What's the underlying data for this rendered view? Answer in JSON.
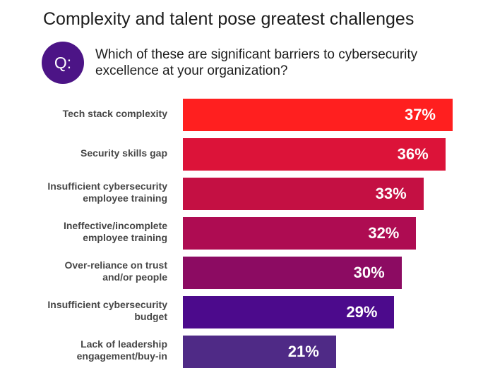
{
  "question_badge": "Q:",
  "colors": {
    "badge": "#4c1486",
    "title_text": "#1c1c1c",
    "label_text": "#474747",
    "value_text": "#ffffff"
  },
  "chart_data": {
    "type": "bar",
    "title": "Complexity and talent pose greatest challenges",
    "subtitle": "Which of these are significant barriers to cybersecurity excellence at your organization?",
    "categories": [
      "Tech stack complexity",
      "Security skills gap",
      "Insufficient cybersecurity\nemployee training",
      "Ineffective/incomplete\nemployee training",
      "Over-reliance on trust\nand/or people",
      "Insufficient cybersecurity\nbudget",
      "Lack of leadership\nengagement/buy-in"
    ],
    "values": [
      37,
      36,
      33,
      32,
      30,
      29,
      21
    ],
    "data_labels": [
      "37%",
      "36%",
      "33%",
      "32%",
      "30%",
      "29%",
      "21%"
    ],
    "bar_colors": [
      "#ff1f1f",
      "#dc1339",
      "#c41043",
      "#ae0c52",
      "#8c0b62",
      "#4c0a8c",
      "#4f2a86"
    ],
    "grid": false
  }
}
